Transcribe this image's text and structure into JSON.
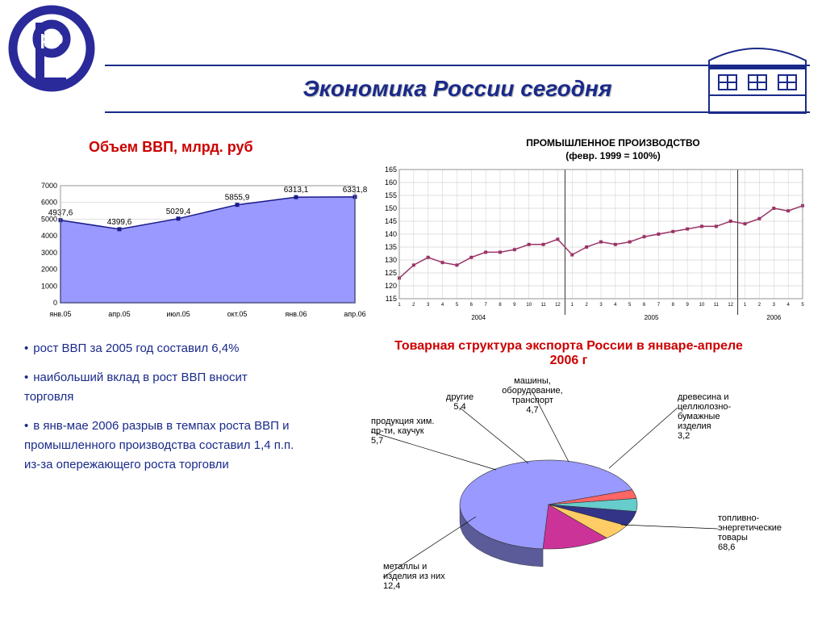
{
  "header": {
    "title": "Экономика России сегодня",
    "title_color": "#1a2a8a",
    "border_color": "#1a2a8a"
  },
  "gdp_chart": {
    "type": "area",
    "title": "Объем ВВП, млрд. руб",
    "title_color": "#cc0000",
    "categories": [
      "янв.05",
      "апр.05",
      "июл.05",
      "окт.05",
      "янв.06",
      "апр.06"
    ],
    "values": [
      4937.6,
      4399.6,
      5029.4,
      5855.9,
      6313.1,
      6331.8
    ],
    "value_labels": [
      "4937,6",
      "4399,6",
      "5029,4",
      "5855,9",
      "6313,1",
      "6331,8"
    ],
    "ylim": [
      0,
      7000
    ],
    "ytick_step": 1000,
    "fill_color": "#9999ff",
    "stroke_color": "#1a1a8a",
    "grid_color": "#c0c0c0",
    "label_fontsize": 9
  },
  "industry_chart": {
    "type": "line",
    "title_line1": "ПРОМЫШЛЕННОЕ ПРОИЗВОДСТВО",
    "title_line2": "(февр. 1999 = 100%)",
    "ylim": [
      115,
      165
    ],
    "ytick_step": 5,
    "marker_color": "#993366",
    "line_color": "#993366",
    "grid_color": "#c0c0c0",
    "x_years": [
      "2004",
      "2005",
      "2006"
    ],
    "x_months_2004": [
      1,
      2,
      3,
      4,
      5,
      6,
      7,
      8,
      9,
      10,
      11,
      12
    ],
    "x_months_2005": [
      1,
      2,
      3,
      4,
      5,
      6,
      7,
      8,
      9,
      10,
      11,
      12
    ],
    "x_months_2006": [
      1,
      2,
      3,
      4,
      5
    ],
    "values": [
      123,
      128,
      131,
      129,
      128,
      131,
      133,
      133,
      134,
      136,
      136,
      138,
      132,
      135,
      137,
      136,
      137,
      139,
      140,
      141,
      142,
      143,
      143,
      145,
      144,
      146,
      150,
      149,
      151
    ]
  },
  "bullets": {
    "color": "#1a2a8a",
    "items": [
      "рост ВВП за 2005 год составил 6,4%",
      "наибольший вклад в рост ВВП вносит торговля",
      "в янв-мае 2006 разрыв в темпах роста ВВП и промышленного производства составил 1,4 п.п. из-за опережающего роста торговли"
    ]
  },
  "pie_chart": {
    "type": "pie_3d",
    "title": "Товарная структура экспорта России в январе-апреле 2006 г",
    "title_color": "#cc0000",
    "segments": [
      {
        "name": "топливно-энергетические товары",
        "value": 68.6,
        "label": "топливно-\nэнергетические\nтовары\n68,6",
        "color": "#9999ff"
      },
      {
        "name": "древесина",
        "value": 3.2,
        "label": "древесина и\nцеллюлозно-\nбумажные\nизделия\n3,2",
        "color": "#ff6666"
      },
      {
        "name": "машины",
        "value": 4.7,
        "label": "машины,\nоборудование,\nтранспорт\n4,7",
        "color": "#66cccc"
      },
      {
        "name": "другие",
        "value": 5.4,
        "label": "другие\n5,4",
        "color": "#333388"
      },
      {
        "name": "продукция хим",
        "value": 5.7,
        "label": "продукция хим.\nпр-ти, каучук\n5,7",
        "color": "#ffcc66"
      },
      {
        "name": "металлы",
        "value": 12.4,
        "label": "металлы и\nизделия из них\n12,4",
        "color": "#cc3399"
      }
    ]
  }
}
